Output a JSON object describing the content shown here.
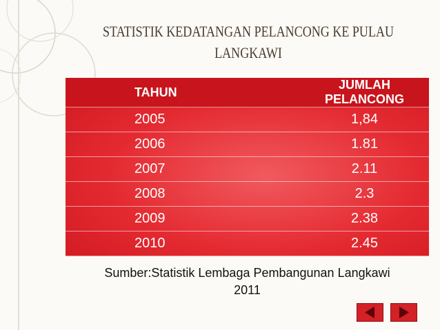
{
  "title": {
    "lines": [
      "STATISTIK KEDATANGAN PELANCONG KE PULAU",
      "LANGKAWI"
    ]
  },
  "table": {
    "header": [
      "TAHUN",
      "JUMLAH PELANCONG"
    ],
    "rows": [
      [
        "2005",
        "1,84"
      ],
      [
        "2006",
        "1.81"
      ],
      [
        "2007",
        "2.11"
      ],
      [
        "2008",
        "2.3"
      ],
      [
        "2009",
        "2.38"
      ],
      [
        "2010",
        "2.45"
      ]
    ]
  },
  "source": {
    "lines": [
      "Sumber:Statistik Lembaga Pembangunan Langkawi",
      "2011"
    ]
  }
}
